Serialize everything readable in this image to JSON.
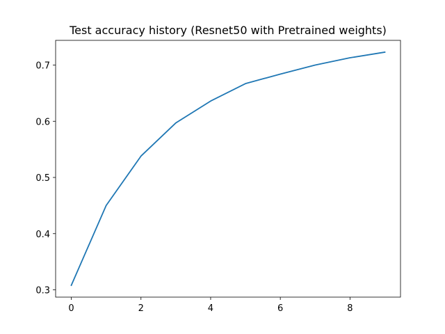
{
  "chart_data": {
    "type": "line",
    "title": "Test accuracy history (Resnet50 with Pretrained weights)",
    "xlabel": "",
    "ylabel": "",
    "x": [
      0,
      1,
      2,
      3,
      4,
      5,
      6,
      7,
      8,
      9
    ],
    "series": [
      {
        "values": [
          0.308,
          0.45,
          0.538,
          0.597,
          0.636,
          0.667,
          0.684,
          0.7,
          0.713,
          0.723
        ],
        "color": "#1f77b4"
      }
    ],
    "xlim": [
      -0.45,
      9.45
    ],
    "ylim": [
      0.287,
      0.744
    ],
    "xticks": [
      "0",
      "2",
      "4",
      "6",
      "8"
    ],
    "yticks": [
      "0.3",
      "0.4",
      "0.5",
      "0.6",
      "0.7"
    ],
    "grid": false,
    "legend": "none"
  }
}
